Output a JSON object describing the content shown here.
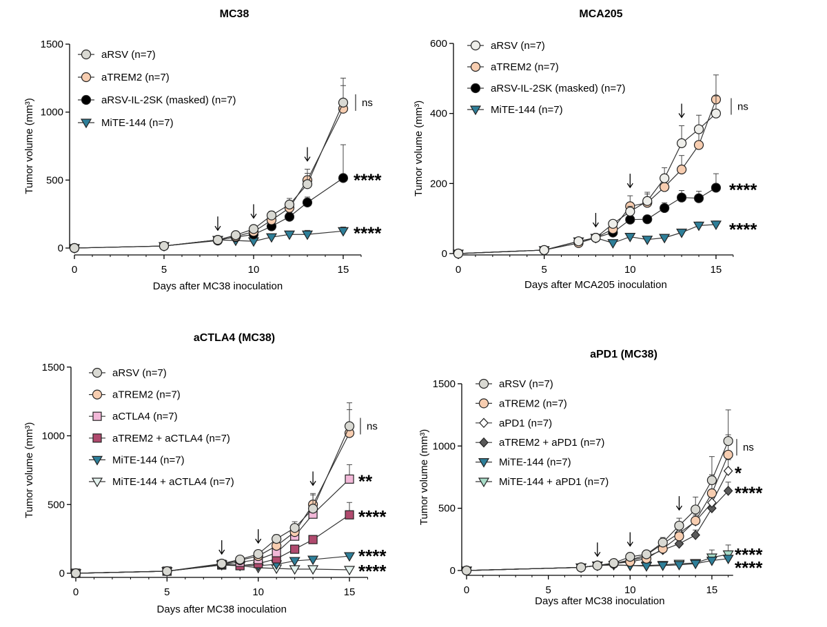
{
  "chart_data": [
    {
      "type": "line",
      "title": "MC38",
      "xlabel": "Days after MC38 inoculation",
      "ylabel": "Tumor volume (mm³)",
      "xlim": [
        0,
        16
      ],
      "ylim": [
        0,
        1500
      ],
      "xticks": [
        0,
        5,
        10,
        15
      ],
      "yticks": [
        0,
        500,
        1000,
        1500
      ],
      "arrows": [
        8,
        10,
        13
      ],
      "series": [
        {
          "name": "aRSV (n=7)",
          "marker": "circle",
          "fill": "#d9d9d3",
          "x": [
            0,
            5,
            8,
            9,
            10,
            11,
            12,
            13,
            15
          ],
          "values": [
            0,
            15,
            60,
            95,
            140,
            240,
            320,
            470,
            1070
          ],
          "err": [
            0,
            5,
            10,
            15,
            20,
            30,
            45,
            80,
            180
          ]
        },
        {
          "name": "aTREM2 (n=7)",
          "marker": "circle",
          "fill": "#f7cdb0",
          "x": [
            0,
            5,
            8,
            9,
            10,
            11,
            12,
            13,
            15
          ],
          "values": [
            0,
            15,
            55,
            85,
            120,
            205,
            295,
            500,
            1025
          ],
          "err": [
            0,
            5,
            10,
            15,
            20,
            30,
            45,
            80,
            170
          ]
        },
        {
          "name": "aRSV-IL-2SK (masked) (n=7)",
          "marker": "circle",
          "fill": "#000000",
          "x": [
            0,
            5,
            8,
            9,
            10,
            11,
            12,
            13,
            15
          ],
          "values": [
            0,
            15,
            60,
            80,
            100,
            160,
            230,
            335,
            515
          ],
          "err": [
            0,
            5,
            10,
            10,
            15,
            20,
            30,
            40,
            245
          ]
        },
        {
          "name": "MiTE-144 (n=7)",
          "marker": "triangle-down",
          "fill": "#2e7f99",
          "x": [
            0,
            5,
            8,
            9,
            10,
            11,
            12,
            13,
            15
          ],
          "values": [
            0,
            15,
            60,
            55,
            50,
            80,
            100,
            100,
            125
          ],
          "err": [
            0,
            5,
            8,
            8,
            8,
            15,
            20,
            30,
            30
          ]
        }
      ],
      "annotations": [
        {
          "label": "ns",
          "y": 1070
        },
        {
          "label": "****",
          "y": 515
        },
        {
          "label": "****",
          "y": 125
        }
      ]
    },
    {
      "type": "line",
      "title": "MCA205",
      "xlabel": "Days after MCA205 inoculation",
      "ylabel": "Tumor volume (mm³)",
      "xlim": [
        0,
        16
      ],
      "ylim": [
        0,
        600
      ],
      "xticks": [
        0,
        5,
        10,
        15
      ],
      "yticks": [
        0,
        200,
        400,
        600
      ],
      "arrows": [
        8,
        10,
        13
      ],
      "series": [
        {
          "name": "aRSV (n=7)",
          "marker": "circle",
          "fill": "#eeeeea",
          "x": [
            0,
            5,
            7,
            8,
            9,
            10,
            11,
            12,
            13,
            14,
            15
          ],
          "values": [
            0,
            10,
            35,
            45,
            85,
            120,
            150,
            215,
            315,
            355,
            400
          ],
          "err": [
            0,
            3,
            5,
            8,
            10,
            15,
            25,
            30,
            50,
            40,
            50
          ]
        },
        {
          "name": "aTREM2 (n=7)",
          "marker": "circle",
          "fill": "#f7cdb0",
          "x": [
            0,
            5,
            7,
            8,
            9,
            10,
            11,
            12,
            13,
            14,
            15
          ],
          "values": [
            0,
            10,
            30,
            45,
            70,
            135,
            145,
            190,
            240,
            310,
            440
          ],
          "err": [
            0,
            3,
            5,
            8,
            10,
            30,
            25,
            30,
            40,
            40,
            70
          ]
        },
        {
          "name": "aRSV-IL-2SK (masked) (n=7)",
          "marker": "circle",
          "fill": "#000000",
          "x": [
            0,
            5,
            7,
            8,
            9,
            10,
            11,
            12,
            13,
            14,
            15
          ],
          "values": [
            0,
            10,
            35,
            45,
            60,
            97,
            98,
            130,
            160,
            158,
            188
          ],
          "err": [
            0,
            3,
            5,
            5,
            8,
            10,
            10,
            15,
            20,
            20,
            40
          ]
        },
        {
          "name": "MiTE-144 (n=7)",
          "marker": "triangle-down",
          "fill": "#2e7f99",
          "x": [
            0,
            5,
            7,
            8,
            9,
            10,
            11,
            12,
            13,
            14,
            15
          ],
          "values": [
            0,
            10,
            35,
            45,
            30,
            48,
            40,
            45,
            60,
            80,
            83
          ],
          "err": [
            0,
            3,
            5,
            5,
            5,
            8,
            5,
            8,
            8,
            10,
            10
          ]
        }
      ],
      "annotations": [
        {
          "label": "ns",
          "y": 420
        },
        {
          "label": "****",
          "y": 188
        },
        {
          "label": "****",
          "y": 75
        }
      ]
    },
    {
      "type": "line",
      "title": "aCTLA4 (MC38)",
      "xlabel": "Days after MC38 inoculation",
      "ylabel": "Tumor volume (mm³)",
      "xlim": [
        0,
        16
      ],
      "ylim": [
        0,
        1500
      ],
      "xticks": [
        0,
        5,
        10,
        15
      ],
      "yticks": [
        0,
        500,
        1000,
        1500
      ],
      "arrows": [
        8,
        10,
        13
      ],
      "series": [
        {
          "name": "aRSV (n=7)",
          "marker": "circle",
          "fill": "#d9d9d3",
          "x": [
            0,
            5,
            8,
            9,
            10,
            11,
            12,
            13,
            15
          ],
          "values": [
            0,
            15,
            70,
            100,
            140,
            250,
            330,
            470,
            1070
          ],
          "err": [
            0,
            5,
            10,
            15,
            20,
            30,
            45,
            100,
            170
          ]
        },
        {
          "name": "aTREM2 (n=7)",
          "marker": "circle",
          "fill": "#f7cdb0",
          "x": [
            0,
            5,
            8,
            9,
            10,
            11,
            12,
            13,
            15
          ],
          "values": [
            0,
            15,
            65,
            95,
            125,
            200,
            300,
            500,
            1020
          ],
          "err": [
            0,
            5,
            10,
            15,
            20,
            30,
            45,
            80,
            170
          ]
        },
        {
          "name": "aCTLA4 (n=7)",
          "marker": "square",
          "fill": "#f2b8d8",
          "x": [
            0,
            5,
            8,
            9,
            10,
            11,
            12,
            13,
            15
          ],
          "values": [
            0,
            15,
            65,
            80,
            100,
            150,
            270,
            430,
            685
          ],
          "err": [
            0,
            5,
            10,
            15,
            20,
            25,
            40,
            60,
            105
          ]
        },
        {
          "name": "aTREM2 + aCTLA4 (n=7)",
          "marker": "square",
          "fill": "#b04a6e",
          "x": [
            0,
            5,
            8,
            9,
            10,
            11,
            12,
            13,
            15
          ],
          "values": [
            0,
            15,
            60,
            55,
            70,
            105,
            175,
            245,
            425
          ],
          "err": [
            0,
            5,
            8,
            10,
            15,
            20,
            25,
            30,
            90
          ]
        },
        {
          "name": "MiTE-144 (n=7)",
          "marker": "triangle-down",
          "fill": "#2e7f99",
          "x": [
            0,
            5,
            8,
            9,
            10,
            11,
            12,
            13,
            15
          ],
          "values": [
            0,
            15,
            65,
            60,
            55,
            65,
            90,
            100,
            125
          ],
          "err": [
            0,
            5,
            8,
            8,
            10,
            10,
            15,
            15,
            20
          ]
        },
        {
          "name": "MiTE-144 + aCTLA4 (n=7)",
          "marker": "triangle-down",
          "fill": "#e4f2ee",
          "x": [
            0,
            5,
            8,
            9,
            10,
            11,
            12,
            13,
            15
          ],
          "values": [
            0,
            15,
            60,
            55,
            40,
            35,
            30,
            30,
            25
          ],
          "err": [
            0,
            5,
            8,
            8,
            8,
            8,
            8,
            8,
            5
          ]
        }
      ],
      "annotations": [
        {
          "label": "ns",
          "y": 1070
        },
        {
          "label": "**",
          "y": 685
        },
        {
          "label": "****",
          "y": 425
        },
        {
          "label": "****",
          "y": 140
        },
        {
          "label": "****",
          "y": 30
        }
      ]
    },
    {
      "type": "line",
      "title": "aPD1 (MC38)",
      "xlabel": "Days after MC38 inoculation",
      "ylabel": "Tumor volume (mm³)",
      "xlim": [
        0,
        16.3
      ],
      "ylim": [
        0,
        1500
      ],
      "xticks": [
        0,
        5,
        10,
        15
      ],
      "yticks": [
        0,
        500,
        1000,
        1500
      ],
      "arrows": [
        8,
        10,
        13
      ],
      "series": [
        {
          "name": "aRSV (n=7)",
          "marker": "circle",
          "fill": "#d9d9d3",
          "x": [
            0,
            7,
            8,
            9,
            10,
            11,
            12,
            13,
            14,
            15,
            16
          ],
          "values": [
            0,
            25,
            40,
            60,
            110,
            130,
            225,
            360,
            490,
            725,
            1040
          ],
          "err": [
            0,
            5,
            8,
            10,
            20,
            25,
            40,
            60,
            100,
            190,
            250
          ]
        },
        {
          "name": "aTREM2 (n=7)",
          "marker": "circle",
          "fill": "#f7cdb0",
          "x": [
            0,
            7,
            8,
            9,
            10,
            11,
            12,
            13,
            14,
            15,
            16
          ],
          "values": [
            0,
            25,
            40,
            55,
            70,
            95,
            175,
            275,
            400,
            620,
            930
          ],
          "err": [
            0,
            5,
            8,
            10,
            15,
            20,
            30,
            50,
            80,
            150,
            160
          ]
        },
        {
          "name": "aPD1 (n=7)",
          "marker": "diamond",
          "fill": "#ffffff",
          "x": [
            0,
            7,
            8,
            9,
            10,
            11,
            12,
            13,
            14,
            15,
            16
          ],
          "values": [
            0,
            25,
            40,
            55,
            85,
            125,
            215,
            300,
            395,
            545,
            800
          ],
          "err": [
            0,
            5,
            8,
            10,
            15,
            20,
            30,
            40,
            50,
            70,
            90
          ]
        },
        {
          "name": "aTREM2 + aPD1 (n=7)",
          "marker": "diamond",
          "fill": "#5a5a5a",
          "x": [
            0,
            7,
            8,
            9,
            10,
            11,
            12,
            13,
            14,
            15,
            16
          ],
          "values": [
            0,
            25,
            40,
            55,
            80,
            110,
            165,
            215,
            285,
            500,
            640
          ],
          "err": [
            0,
            5,
            8,
            10,
            15,
            20,
            25,
            30,
            40,
            60,
            70
          ]
        },
        {
          "name": "MiTE-144 (n=7)",
          "marker": "triangle-down",
          "fill": "#2e7f99",
          "x": [
            0,
            7,
            8,
            9,
            10,
            11,
            12,
            13,
            14,
            15,
            16
          ],
          "values": [
            0,
            25,
            40,
            45,
            40,
            35,
            40,
            45,
            55,
            80,
            95
          ],
          "err": [
            0,
            5,
            5,
            5,
            5,
            5,
            5,
            8,
            10,
            15,
            20
          ]
        },
        {
          "name": "MiTE-144 + aPD1 (n=7)",
          "marker": "triangle-down",
          "fill": "#a8dcc8",
          "x": [
            0,
            7,
            8,
            9,
            10,
            11,
            12,
            13,
            14,
            15,
            16
          ],
          "values": [
            0,
            25,
            40,
            45,
            40,
            40,
            45,
            55,
            60,
            105,
            130
          ],
          "err": [
            0,
            5,
            5,
            5,
            5,
            5,
            8,
            10,
            15,
            60,
            75
          ]
        }
      ],
      "annotations": [
        {
          "label": "ns",
          "y": 990
        },
        {
          "label": "*",
          "y": 800
        },
        {
          "label": "****",
          "y": 640
        },
        {
          "label": "****",
          "y": 145
        },
        {
          "label": "****",
          "y": 40
        }
      ]
    }
  ]
}
